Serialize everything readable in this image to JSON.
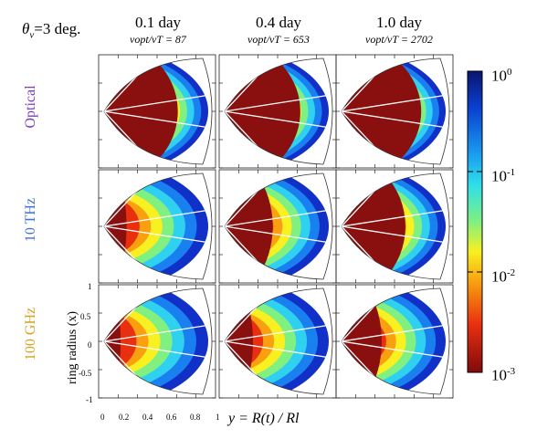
{
  "figure": {
    "theta_label": "=3 deg.",
    "theta_symbol": "θ",
    "theta_sub": "v",
    "columns": [
      {
        "title": "0.1 day",
        "sub": "ν",
        "ratio": "opt/νT = 87",
        "opt_ratio": 87
      },
      {
        "title": "0.4 day",
        "sub": "ν",
        "ratio": "opt/νT = 653",
        "opt_ratio": 653
      },
      {
        "title": "1.0 day",
        "sub": "ν",
        "ratio": "opt/νT = 2702",
        "opt_ratio": 2702
      }
    ],
    "rows": [
      {
        "label": "Optical",
        "color": "#7b3fb5"
      },
      {
        "label": "10 THz",
        "color": "#3f6fd0"
      },
      {
        "label": "100 GHz",
        "color": "#d8a020"
      }
    ],
    "yaxis": {
      "label": "ring radius (x)",
      "ticks": [
        "1",
        "0.5",
        "0",
        "-0.5",
        "-1"
      ]
    },
    "xaxis": {
      "label": "y = R(t) / Rl",
      "ticks": [
        "0",
        "0.2",
        "0.4",
        "0.6",
        "0.8",
        "1"
      ]
    },
    "colorbar": {
      "ticks": [
        {
          "base": "10",
          "exp": "0"
        },
        {
          "base": "10",
          "exp": "-1"
        },
        {
          "base": "10",
          "exp": "-2"
        },
        {
          "base": "10",
          "exp": "-3"
        }
      ],
      "colors": [
        "#08156e",
        "#0a3fd0",
        "#1a9ff0",
        "#30e0e8",
        "#80f080",
        "#f8f020",
        "#f8a010",
        "#e83010",
        "#800a0a"
      ]
    },
    "panels": [
      [
        {
          "core": 0.84
        },
        {
          "core": 0.86
        },
        {
          "core": 0.9
        }
      ],
      [
        {
          "core": 0.32
        },
        {
          "core": 0.58
        },
        {
          "core": 0.74
        }
      ],
      [
        {
          "core": 0.26
        },
        {
          "core": 0.38
        },
        {
          "core": 0.5
        }
      ]
    ]
  }
}
